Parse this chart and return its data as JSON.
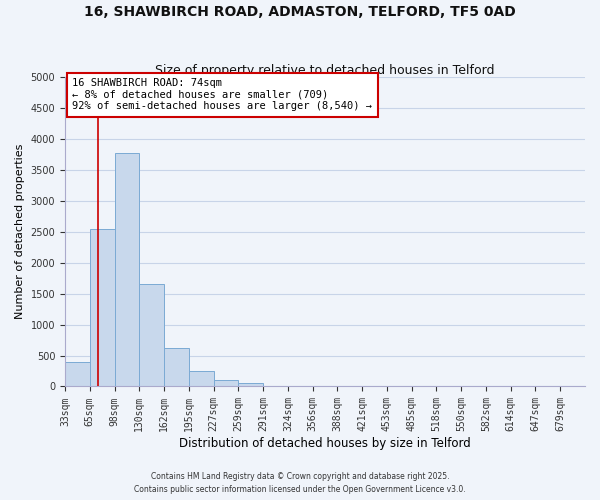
{
  "title_line1": "16, SHAWBIRCH ROAD, ADMASTON, TELFORD, TF5 0AD",
  "title_line2": "Size of property relative to detached houses in Telford",
  "xlabel": "Distribution of detached houses by size in Telford",
  "ylabel": "Number of detached properties",
  "bin_labels": [
    "33sqm",
    "65sqm",
    "98sqm",
    "130sqm",
    "162sqm",
    "195sqm",
    "227sqm",
    "259sqm",
    "291sqm",
    "324sqm",
    "356sqm",
    "388sqm",
    "421sqm",
    "453sqm",
    "485sqm",
    "518sqm",
    "550sqm",
    "582sqm",
    "614sqm",
    "647sqm",
    "679sqm"
  ],
  "bar_heights": [
    390,
    2550,
    3780,
    1650,
    625,
    250,
    100,
    50,
    0,
    0,
    0,
    0,
    0,
    0,
    0,
    0,
    0,
    0,
    0,
    0,
    0
  ],
  "bar_color": "#c8d8ec",
  "bar_edge_color": "#7baad4",
  "ylim": [
    0,
    5000
  ],
  "yticks": [
    0,
    500,
    1000,
    1500,
    2000,
    2500,
    3000,
    3500,
    4000,
    4500,
    5000
  ],
  "vline_x": 1.35,
  "vline_color": "#cc0000",
  "annotation_text": "16 SHAWBIRCH ROAD: 74sqm\n← 8% of detached houses are smaller (709)\n92% of semi-detached houses are larger (8,540) →",
  "annotation_box_facecolor": "#ffffff",
  "annotation_box_edgecolor": "#cc0000",
  "footer_line1": "Contains HM Land Registry data © Crown copyright and database right 2025.",
  "footer_line2": "Contains public sector information licensed under the Open Government Licence v3.0.",
  "bg_color": "#f0f4fa",
  "grid_color": "#c8d4e8"
}
